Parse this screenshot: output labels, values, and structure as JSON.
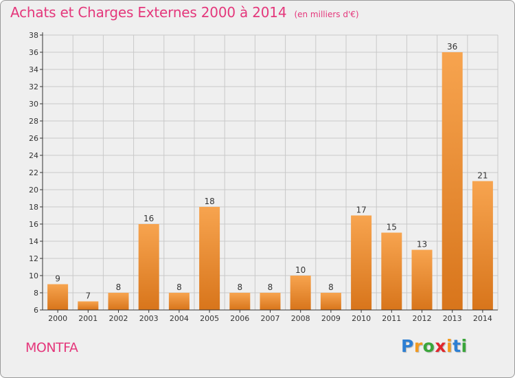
{
  "title": "Achats et Charges Externes 2000 à 2014",
  "subtitle": "(en milliers d'€)",
  "commune": "MONTFA",
  "brand": {
    "letters": [
      "P",
      "r",
      "o",
      "x",
      "i",
      "t",
      "i"
    ],
    "colors": [
      "#2d7fd3",
      "#f39a1f",
      "#3aa63a",
      "#e1262c",
      "#f39a1f",
      "#2d7fd3",
      "#3aa63a"
    ]
  },
  "colors": {
    "bar_top": "#f7a44f",
    "bar_bottom": "#d8751b",
    "grid": "#c9c9c9",
    "axis": "#333333",
    "title": "#e4377b"
  },
  "chart_data": {
    "type": "bar",
    "title": "Achats et Charges Externes 2000 à 2014",
    "subtitle": "(en milliers d'€)",
    "categories": [
      "2000",
      "2001",
      "2002",
      "2003",
      "2004",
      "2005",
      "2006",
      "2007",
      "2008",
      "2009",
      "2010",
      "2011",
      "2012",
      "2013",
      "2014"
    ],
    "values": [
      9,
      7,
      8,
      16,
      8,
      18,
      8,
      8,
      10,
      8,
      17,
      15,
      13,
      36,
      21
    ],
    "ylim": [
      6,
      38
    ],
    "yticks": [
      6,
      8,
      10,
      12,
      14,
      16,
      18,
      20,
      22,
      24,
      26,
      28,
      30,
      32,
      34,
      36,
      38
    ],
    "grid": true
  }
}
